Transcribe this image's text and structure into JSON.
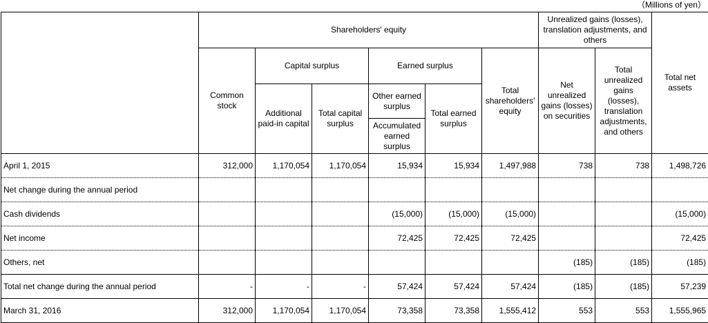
{
  "unit_note": "（Millions of yen）",
  "headers": {
    "shareholders_equity": "Shareholders' equity",
    "unrealized_group": "Unrealized gains (losses), translation adjustments, and others",
    "capital_surplus": "Capital surplus",
    "earned_surplus": "Earned surplus",
    "common_stock": "Common stock",
    "additional_paid_in": "Additional paid-in capital",
    "total_capital_surplus": "Total capital surplus",
    "other_earned_surplus": "Other earned surplus",
    "accumulated_earned_surplus": "Accumulated earned surplus",
    "total_earned_surplus": "Total earned surplus",
    "total_shareholders_equity": "Total shareholders' equity",
    "net_unrealized": "Net unrealized gains (losses) on securities",
    "total_unrealized": "Total unrealized gains (losses), translation adjustments, and others",
    "total_net_assets": "Total net assets"
  },
  "rows": [
    {
      "label": "April 1, 2015",
      "values": [
        "312,000",
        "1,170,054",
        "1,170,054",
        "15,934",
        "15,934",
        "1,497,988",
        "738",
        "738",
        "1,498,726"
      ]
    },
    {
      "label": "Net change during the annual period",
      "values": [
        "",
        "",
        "",
        "",
        "",
        "",
        "",
        "",
        ""
      ]
    },
    {
      "label": "Cash dividends",
      "values": [
        "",
        "",
        "",
        "(15,000)",
        "(15,000)",
        "(15,000)",
        "",
        "",
        "(15,000)"
      ]
    },
    {
      "label": "Net income",
      "values": [
        "",
        "",
        "",
        "72,425",
        "72,425",
        "72,425",
        "",
        "",
        "72,425"
      ]
    },
    {
      "label": "Others, net",
      "values": [
        "",
        "",
        "",
        "",
        "",
        "",
        "(185)",
        "(185)",
        "(185)"
      ]
    },
    {
      "label": "Total net change during the annual period",
      "values": [
        "-",
        "-",
        "-",
        "57,424",
        "57,424",
        "57,424",
        "(185)",
        "(185)",
        "57,239"
      ]
    },
    {
      "label": "March 31, 2016",
      "values": [
        "312,000",
        "1,170,054",
        "1,170,054",
        "73,358",
        "73,358",
        "1,555,412",
        "553",
        "553",
        "1,555,965"
      ]
    }
  ]
}
